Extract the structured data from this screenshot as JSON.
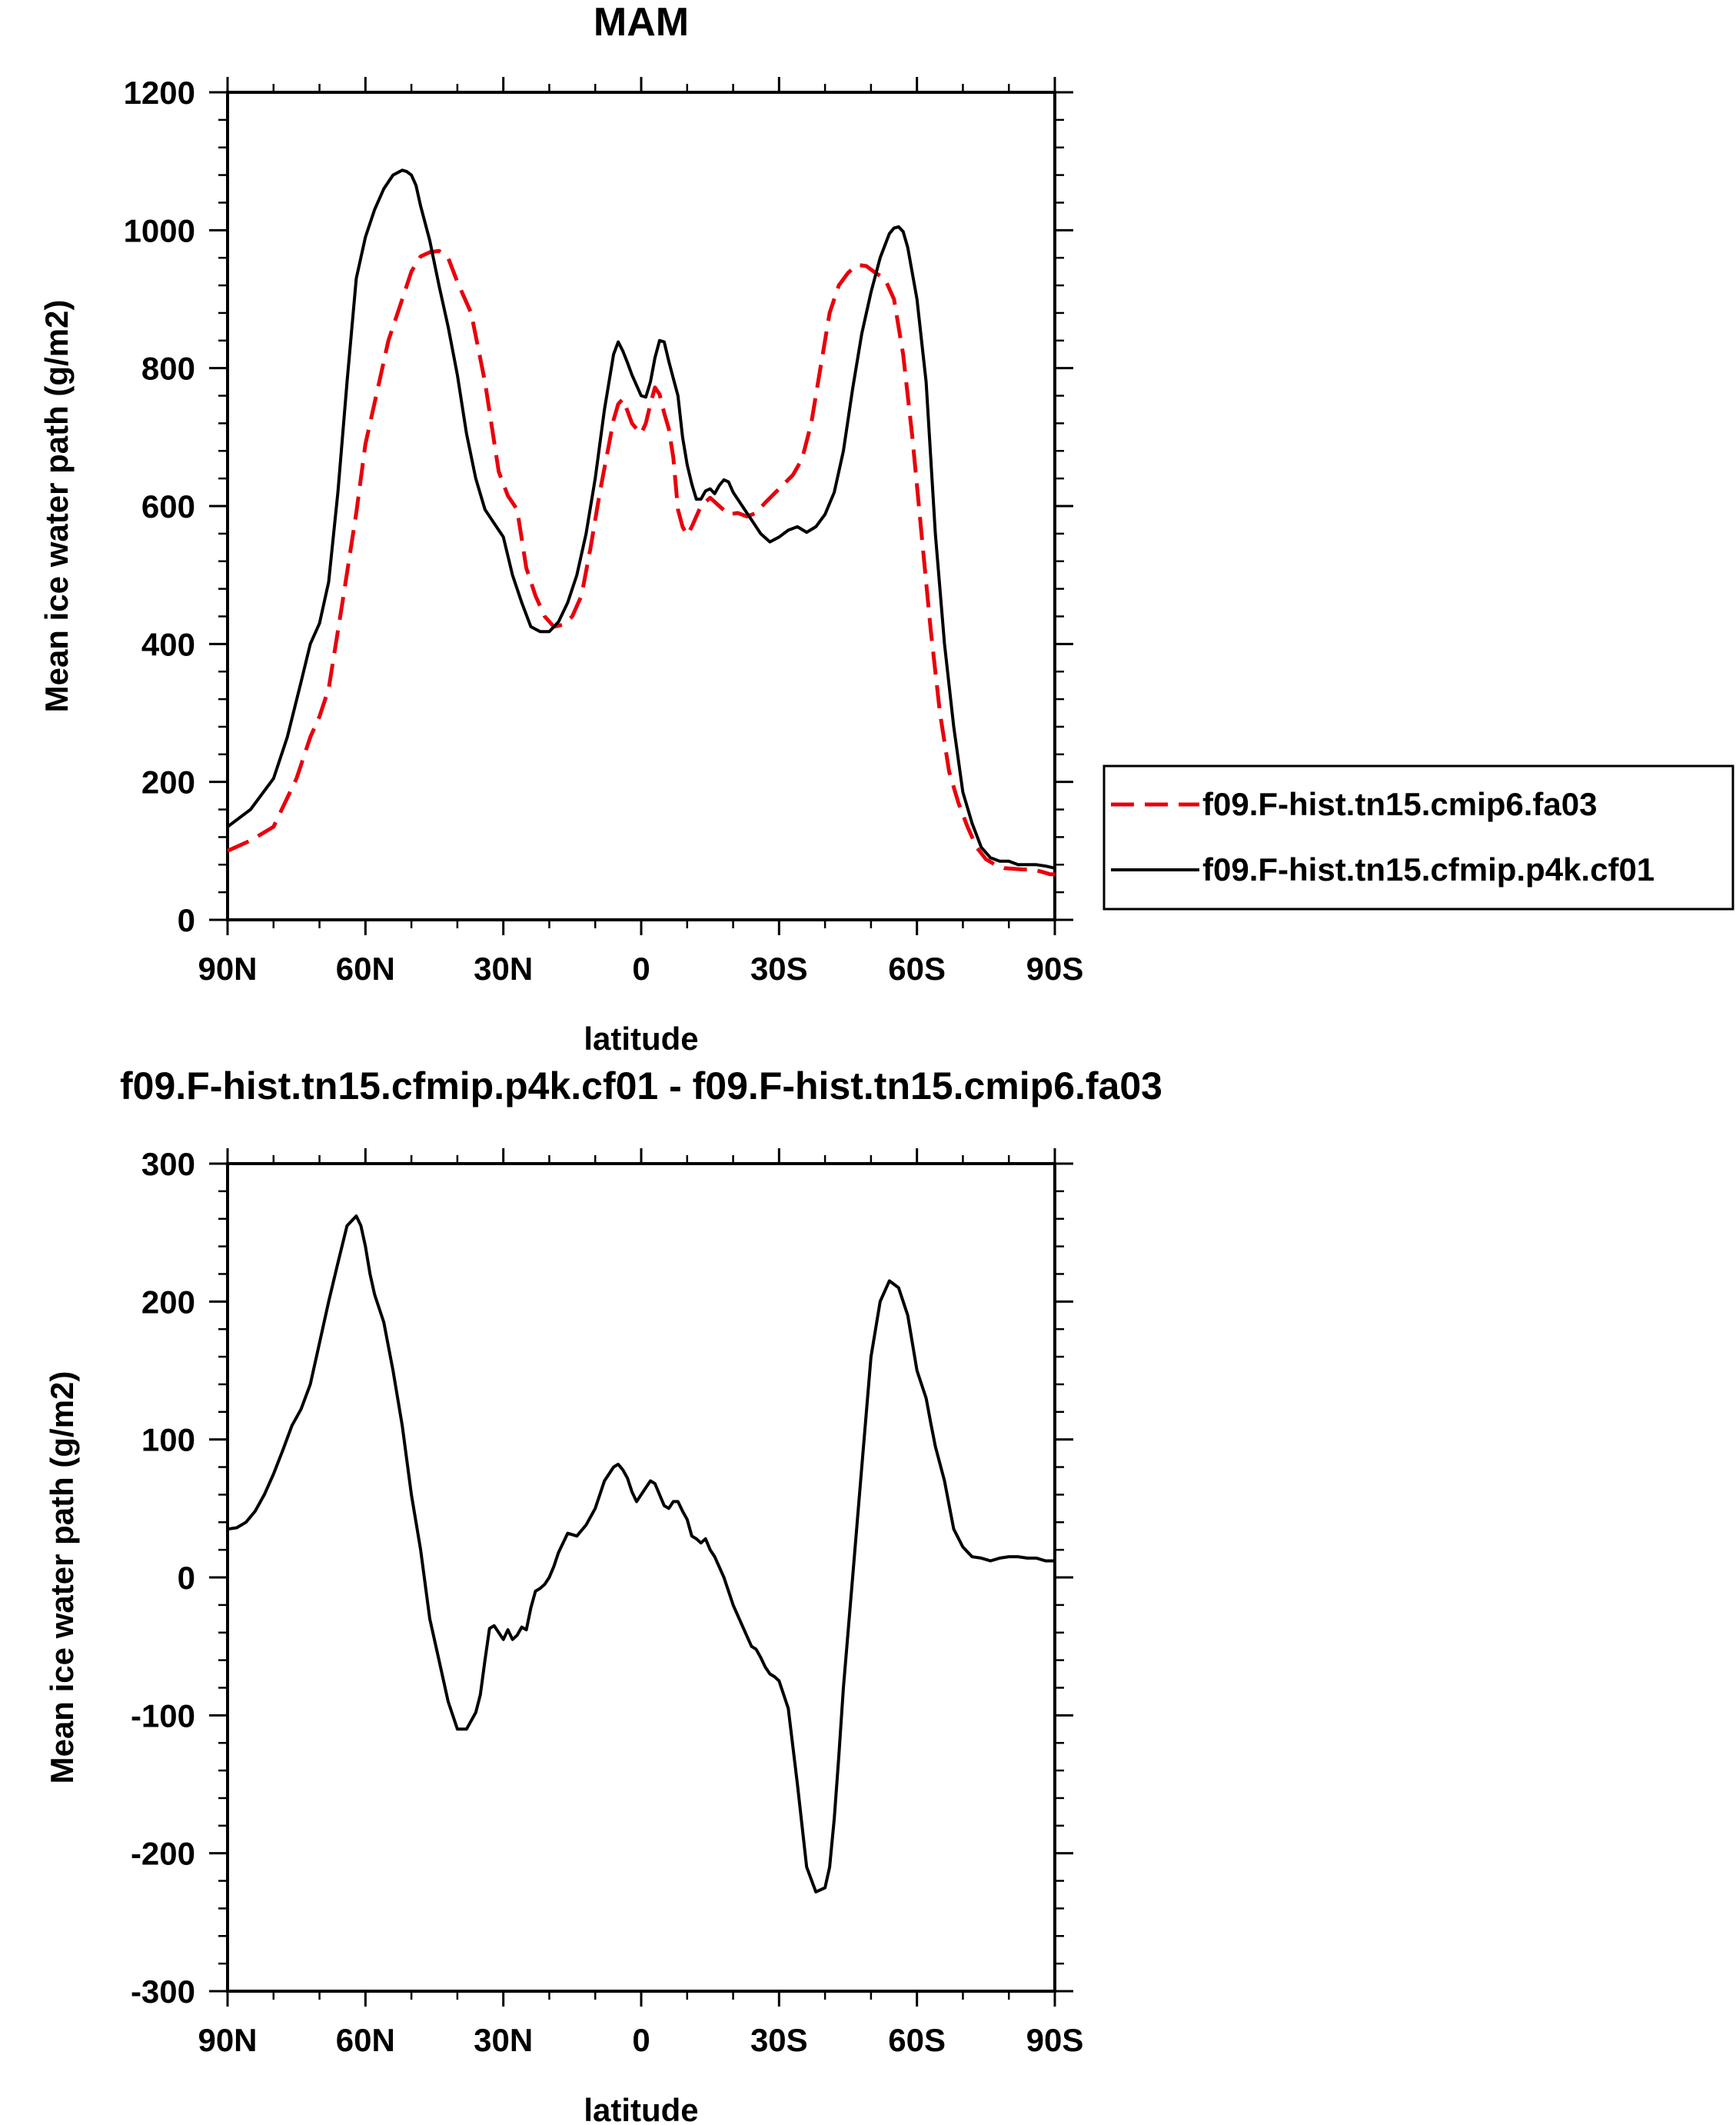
{
  "chart_data": [
    {
      "type": "line",
      "title": "MAM",
      "xlabel": "latitude",
      "ylabel": "Mean ice water path (g/m2)",
      "xlim": [
        90,
        -90
      ],
      "ylim": [
        0,
        1200
      ],
      "xticks": [
        90,
        60,
        30,
        0,
        -30,
        -60,
        -90
      ],
      "xtick_labels": [
        "90N",
        "60N",
        "30N",
        "0",
        "30S",
        "60S",
        "90S"
      ],
      "yticks": [
        0,
        200,
        400,
        600,
        800,
        1000,
        1200
      ],
      "ytick_labels": [
        "0",
        "200",
        "400",
        "600",
        "800",
        "1000",
        "1200"
      ],
      "legend_position": "right",
      "series": [
        {
          "name": "f09.F-hist.tn15.cmip6.fa03",
          "color": "#e8000b",
          "dash": "dashed",
          "x": [
            90,
            85,
            80,
            75,
            72,
            70,
            68,
            65,
            62,
            60,
            57,
            55,
            52,
            50,
            48,
            46,
            44,
            42,
            40,
            37,
            34,
            31,
            29,
            27,
            25,
            23,
            21,
            19,
            17,
            15,
            13,
            11,
            9,
            7,
            6,
            5,
            4,
            3,
            2,
            1,
            0,
            -1,
            -2,
            -3,
            -4,
            -5,
            -6,
            -7,
            -8,
            -9,
            -10,
            -11,
            -12,
            -13,
            -15,
            -17,
            -19,
            -21,
            -23,
            -25,
            -27,
            -30,
            -33,
            -35,
            -37,
            -39,
            -41,
            -43,
            -45,
            -47,
            -49,
            -51,
            -53,
            -55,
            -57,
            -59,
            -61,
            -63,
            -65,
            -67,
            -69,
            -71,
            -73,
            -75,
            -77,
            -79,
            -81,
            -83,
            -85,
            -87,
            -89,
            -90
          ],
          "y": [
            100,
            115,
            135,
            205,
            265,
            295,
            335,
            460,
            590,
            690,
            780,
            840,
            900,
            940,
            962,
            968,
            970,
            960,
            925,
            880,
            780,
            650,
            615,
            595,
            510,
            470,
            440,
            425,
            428,
            440,
            470,
            540,
            620,
            690,
            725,
            748,
            755,
            738,
            720,
            712,
            705,
            720,
            748,
            772,
            762,
            735,
            712,
            670,
            595,
            570,
            558,
            570,
            585,
            600,
            612,
            600,
            588,
            590,
            585,
            590,
            605,
            625,
            645,
            668,
            720,
            800,
            880,
            920,
            938,
            950,
            948,
            938,
            930,
            900,
            820,
            700,
            560,
            420,
            300,
            215,
            170,
            135,
            105,
            88,
            80,
            75,
            74,
            73,
            73,
            70,
            66,
            66
          ]
        },
        {
          "name": "f09.F-hist.tn15.cfmip.p4k.cf01",
          "color": "#000000",
          "dash": "solid",
          "x": [
            90,
            85,
            80,
            77,
            74,
            72,
            70,
            68,
            66,
            64,
            62,
            60,
            58,
            56,
            54,
            52,
            51,
            50,
            49,
            48,
            46,
            44,
            42,
            40,
            38,
            36,
            34,
            32,
            30,
            28,
            26,
            24,
            22,
            20,
            18,
            16,
            14,
            12,
            10,
            8,
            6,
            5,
            4,
            3,
            2,
            1,
            0,
            -1,
            -2,
            -3,
            -4,
            -5,
            -6,
            -7,
            -8,
            -9,
            -10,
            -11,
            -12,
            -13,
            -14,
            -15,
            -16,
            -17,
            -18,
            -19,
            -20,
            -22,
            -24,
            -26,
            -28,
            -30,
            -32,
            -34,
            -36,
            -38,
            -40,
            -42,
            -44,
            -46,
            -48,
            -50,
            -52,
            -54,
            -55,
            -56,
            -57,
            -58,
            -60,
            -62,
            -64,
            -66,
            -68,
            -70,
            -72,
            -74,
            -76,
            -78,
            -80,
            -82,
            -84,
            -86,
            -88,
            -90
          ],
          "y": [
            135,
            160,
            205,
            265,
            345,
            400,
            430,
            490,
            620,
            780,
            930,
            990,
            1030,
            1060,
            1080,
            1087,
            1085,
            1080,
            1065,
            1035,
            985,
            920,
            860,
            790,
            705,
            640,
            595,
            575,
            555,
            500,
            460,
            425,
            418,
            418,
            432,
            460,
            500,
            560,
            640,
            740,
            820,
            838,
            825,
            808,
            790,
            775,
            760,
            758,
            780,
            815,
            840,
            838,
            810,
            785,
            760,
            700,
            660,
            632,
            610,
            610,
            622,
            625,
            618,
            630,
            638,
            635,
            620,
            600,
            580,
            560,
            548,
            555,
            565,
            570,
            562,
            570,
            588,
            620,
            680,
            770,
            850,
            910,
            960,
            995,
            1003,
            1005,
            998,
            975,
            900,
            780,
            560,
            400,
            280,
            185,
            140,
            105,
            90,
            85,
            85,
            80,
            80,
            80,
            78,
            75
          ]
        }
      ]
    },
    {
      "type": "line",
      "title": "f09.F-hist.tn15.cfmip.p4k.cf01 - f09.F-hist.tn15.cmip6.fa03",
      "xlabel": "latitude",
      "ylabel": "Mean ice water path (g/m2)",
      "xlim": [
        90,
        -90
      ],
      "ylim": [
        -300,
        300
      ],
      "xticks": [
        90,
        60,
        30,
        0,
        -30,
        -60,
        -90
      ],
      "xtick_labels": [
        "90N",
        "60N",
        "30N",
        "0",
        "30S",
        "60S",
        "90S"
      ],
      "yticks": [
        -300,
        -200,
        -100,
        0,
        100,
        200,
        300
      ],
      "ytick_labels": [
        "-300",
        "-200",
        "-100",
        "0",
        "100",
        "200",
        "300"
      ],
      "series": [
        {
          "color": "#000000",
          "dash": "solid",
          "x": [
            90,
            88,
            86,
            84,
            82,
            80,
            78,
            76,
            74,
            72,
            70,
            68,
            66,
            64,
            62,
            61,
            60,
            59,
            58,
            56,
            54,
            52,
            50,
            48,
            46,
            44,
            42,
            40,
            38,
            36,
            35,
            34,
            33,
            32,
            31,
            30,
            29,
            28,
            27,
            26,
            25,
            24,
            23,
            22,
            21,
            20,
            19,
            18,
            16,
            14,
            12,
            10,
            8,
            6,
            5,
            4,
            3,
            2,
            1,
            0,
            -1,
            -2,
            -3,
            -4,
            -5,
            -6,
            -7,
            -8,
            -9,
            -10,
            -11,
            -12,
            -13,
            -14,
            -15,
            -16,
            -18,
            -20,
            -22,
            -24,
            -25,
            -26,
            -27,
            -28,
            -29,
            -30,
            -32,
            -34,
            -36,
            -38,
            -40,
            -41,
            -42,
            -43,
            -44,
            -46,
            -48,
            -50,
            -52,
            -54,
            -56,
            -58,
            -60,
            -61,
            -62,
            -63,
            -64,
            -66,
            -68,
            -70,
            -72,
            -74,
            -76,
            -78,
            -80,
            -82,
            -84,
            -86,
            -88,
            -90
          ],
          "y": [
            35,
            36,
            40,
            48,
            60,
            75,
            92,
            110,
            122,
            140,
            170,
            200,
            228,
            255,
            262,
            255,
            240,
            220,
            205,
            185,
            150,
            110,
            60,
            20,
            -30,
            -60,
            -90,
            -110,
            -110,
            -98,
            -85,
            -60,
            -37,
            -35,
            -40,
            -45,
            -38,
            -45,
            -42,
            -36,
            -38,
            -22,
            -10,
            -8,
            -5,
            0,
            8,
            18,
            32,
            30,
            38,
            50,
            70,
            80,
            82,
            78,
            72,
            62,
            55,
            60,
            65,
            70,
            68,
            60,
            52,
            50,
            55,
            55,
            48,
            42,
            30,
            28,
            25,
            28,
            20,
            15,
            0,
            -20,
            -35,
            -50,
            -52,
            -58,
            -65,
            -70,
            -72,
            -75,
            -95,
            -150,
            -210,
            -228,
            -225,
            -210,
            -175,
            -130,
            -80,
            0,
            80,
            160,
            200,
            215,
            210,
            190,
            150,
            140,
            130,
            112,
            95,
            70,
            35,
            22,
            15,
            14,
            12,
            14,
            15,
            15,
            14,
            14,
            12,
            12
          ]
        }
      ]
    }
  ]
}
